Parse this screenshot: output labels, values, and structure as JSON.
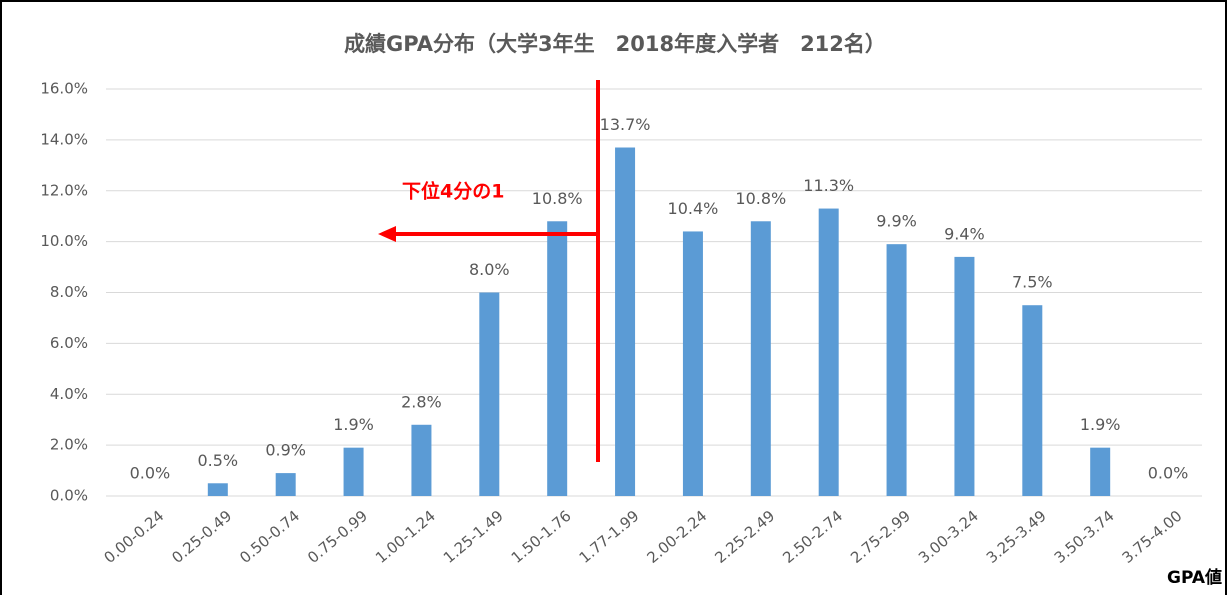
{
  "chart_data": {
    "type": "bar",
    "title": "成績GPA分布（大学3年生　2018年度入学者　212名）",
    "x_label": "GPA値",
    "annotation": "下位4分の1",
    "categories": [
      "0.00-0.24",
      "0.25-0.49",
      "0.50-0.74",
      "0.75-0.99",
      "1.00-1.24",
      "1.25-1.49",
      "1.50-1.76",
      "1.77-1.99",
      "2.00-2.24",
      "2.25-2.49",
      "2.50-2.74",
      "2.75-2.99",
      "3.00-3.24",
      "3.25-3.49",
      "3.50-3.74",
      "3.75-4.00"
    ],
    "values": [
      0.0,
      0.5,
      0.9,
      1.9,
      2.8,
      8.0,
      10.8,
      13.7,
      10.4,
      10.8,
      11.3,
      9.9,
      9.4,
      7.5,
      1.9,
      0.0
    ],
    "value_labels": [
      "0.0%",
      "0.5%",
      "0.9%",
      "1.9%",
      "2.8%",
      "8.0%",
      "10.8%",
      "13.7%",
      "10.4%",
      "10.8%",
      "11.3%",
      "9.9%",
      "9.4%",
      "7.5%",
      "1.9%",
      "0.0%"
    ],
    "color": "#5b9bd5",
    "ylim": [
      0,
      16
    ],
    "yticks": [
      {
        "value": 0,
        "label": "0.0%"
      },
      {
        "value": 2,
        "label": "2.0%"
      },
      {
        "value": 4,
        "label": "4.0%"
      },
      {
        "value": 6,
        "label": "6.0%"
      },
      {
        "value": 8,
        "label": "8.0%"
      },
      {
        "value": 10,
        "label": "10.0%"
      },
      {
        "value": 12,
        "label": "12.0%"
      },
      {
        "value": 14,
        "label": "14.0%"
      },
      {
        "value": 16,
        "label": "16.0%"
      }
    ],
    "grid": true
  }
}
